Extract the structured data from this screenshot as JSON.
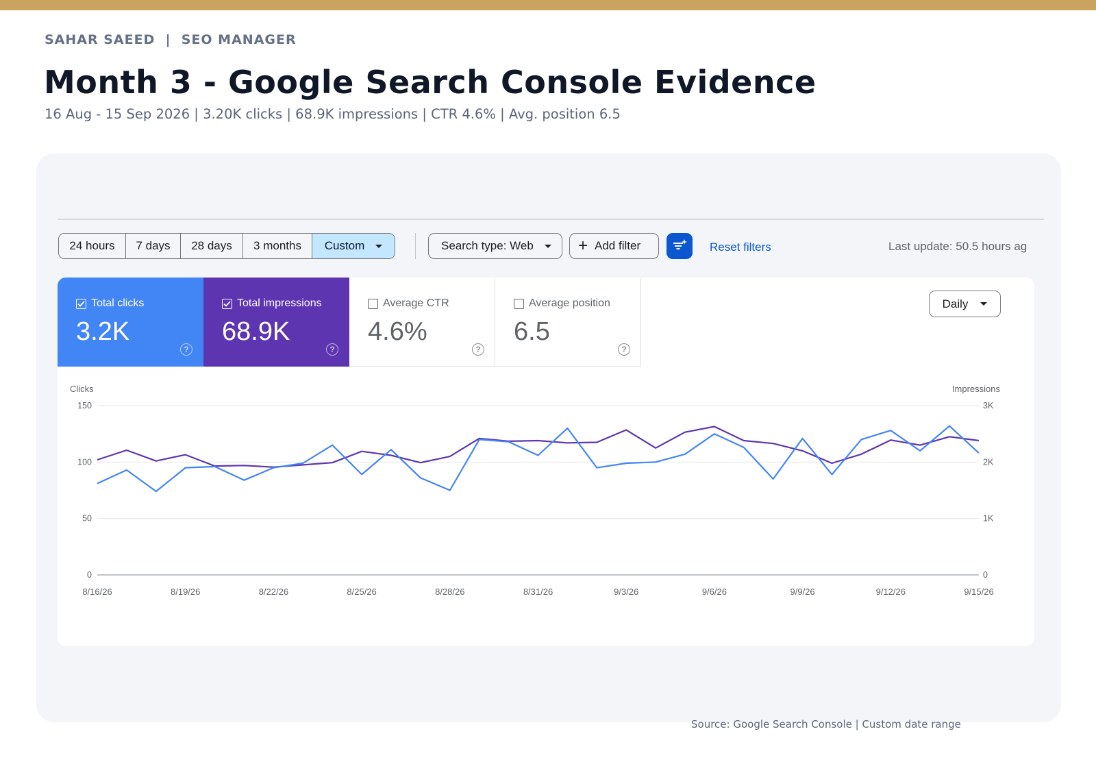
{
  "header": {
    "eyebrow": "SAHAR SAEED  |  SEO MANAGER",
    "title": "Month 3 - Google Search Console Evidence",
    "subtitle": "16 Aug - 15 Sep 2026 | 3.20K clicks | 68.9K impressions | CTR 4.6% | Avg. position 6.5"
  },
  "toolbar": {
    "ranges": [
      "24 hours",
      "7 days",
      "28 days",
      "3 months",
      "Custom"
    ],
    "active_range": "Custom",
    "search_type": "Search type: Web",
    "add_filter": "Add filter",
    "reset_filters": "Reset filters",
    "last_update": "Last update: 50.5 hours ag"
  },
  "metrics": [
    {
      "label": "Total clicks",
      "value": "3.2K",
      "checked": true,
      "color": "#4285f4"
    },
    {
      "label": "Total impressions",
      "value": "68.9K",
      "checked": true,
      "color": "#5e35b1"
    },
    {
      "label": "Average CTR",
      "value": "4.6%",
      "checked": false
    },
    {
      "label": "Average position",
      "value": "6.5",
      "checked": false
    }
  ],
  "granularity": "Daily",
  "chart_data": {
    "type": "line",
    "left_axis_label": "Clicks",
    "right_axis_label": "Impressions",
    "left_ylim": [
      0,
      150
    ],
    "right_ylim": [
      0,
      3000
    ],
    "left_ticks": [
      "0",
      "50",
      "100",
      "150"
    ],
    "right_ticks": [
      "0",
      "1K",
      "2K",
      "3K"
    ],
    "x_tick_labels": [
      "8/16/26",
      "8/19/26",
      "8/22/26",
      "8/25/26",
      "8/28/26",
      "8/31/26",
      "9/3/26",
      "9/6/26",
      "9/9/26",
      "9/12/26",
      "9/15/26"
    ],
    "x": [
      "8/16/26",
      "8/17/26",
      "8/18/26",
      "8/19/26",
      "8/20/26",
      "8/21/26",
      "8/22/26",
      "8/23/26",
      "8/24/26",
      "8/25/26",
      "8/26/26",
      "8/27/26",
      "8/28/26",
      "8/29/26",
      "8/30/26",
      "8/31/26",
      "9/1/26",
      "9/2/26",
      "9/3/26",
      "9/4/26",
      "9/5/26",
      "9/6/26",
      "9/7/26",
      "9/8/26",
      "9/9/26",
      "9/10/26",
      "9/11/26",
      "9/12/26",
      "9/13/26",
      "9/14/26",
      "9/15/26"
    ],
    "series": [
      {
        "name": "Clicks",
        "axis": "left",
        "color": "#4285f4",
        "values": [
          81,
          93,
          74,
          95,
          96,
          84,
          95,
          99,
          115,
          89,
          111,
          86,
          75,
          120,
          118,
          106,
          130,
          95,
          99,
          100,
          107,
          125,
          113,
          85,
          121,
          89,
          120,
          128,
          110,
          132,
          108
        ]
      },
      {
        "name": "Impressions",
        "axis": "right",
        "color": "#5e35b1",
        "values": [
          2040,
          2210,
          2020,
          2130,
          1930,
          1940,
          1910,
          1950,
          1990,
          2190,
          2120,
          1990,
          2100,
          2420,
          2370,
          2380,
          2340,
          2350,
          2570,
          2250,
          2530,
          2630,
          2380,
          2330,
          2200,
          1980,
          2140,
          2390,
          2300,
          2450,
          2380
        ]
      }
    ],
    "grid": true
  },
  "footer": {
    "source": "Source: Google Search Console | Custom date range"
  }
}
